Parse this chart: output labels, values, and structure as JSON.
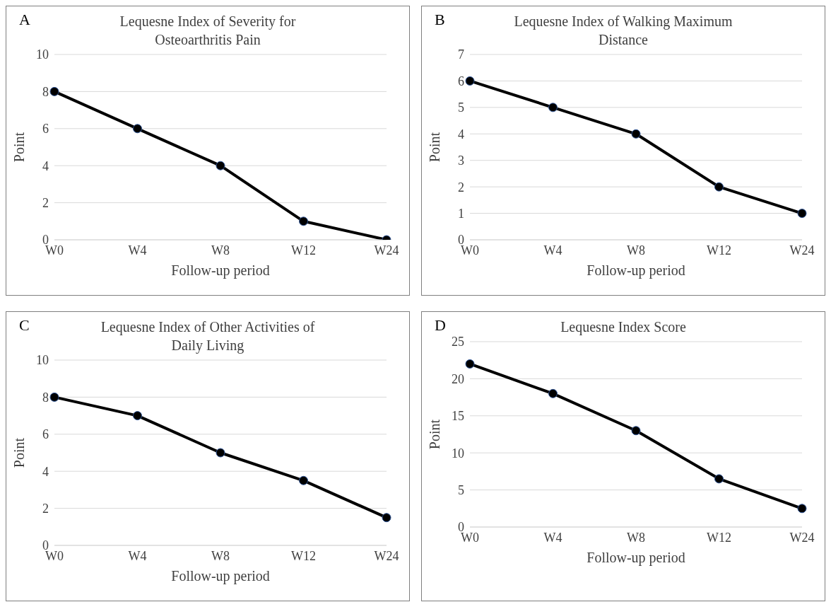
{
  "chart_data": [
    {
      "type": "line",
      "title": "Lequesne Index of Severity for Osteoarthritis Pain",
      "annotations": [
        "A"
      ],
      "xlabel": "Follow-up period",
      "ylabel": "Point",
      "categories": [
        "W0",
        "W4",
        "W8",
        "W12",
        "W24"
      ],
      "series": [
        {
          "color": "#000000",
          "values": [
            8,
            6,
            4,
            1,
            0
          ]
        }
      ],
      "ylim": [
        0,
        10
      ],
      "yticks": [
        0,
        2,
        4,
        6,
        8,
        10
      ],
      "grid": "y",
      "marker": "circle",
      "line_style": "solid"
    },
    {
      "type": "line",
      "title": "Lequesne Index of Walking Maximum Distance",
      "annotations": [
        "B"
      ],
      "xlabel": "Follow-up period",
      "ylabel": "Point",
      "categories": [
        "W0",
        "W4",
        "W8",
        "W12",
        "W24"
      ],
      "series": [
        {
          "color": "#000000",
          "values": [
            6,
            5,
            4,
            2,
            1
          ]
        }
      ],
      "ylim": [
        0,
        7
      ],
      "yticks": [
        0,
        1,
        2,
        3,
        4,
        5,
        6,
        7
      ],
      "grid": "y",
      "marker": "circle",
      "line_style": "solid"
    },
    {
      "type": "line",
      "title": "Lequesne Index of Other Activities of Daily Living",
      "annotations": [
        "C"
      ],
      "xlabel": "Follow-up period",
      "ylabel": "Point",
      "categories": [
        "W0",
        "W4",
        "W8",
        "W12",
        "W24"
      ],
      "series": [
        {
          "color": "#000000",
          "values": [
            8,
            7,
            5,
            3.5,
            1.5
          ]
        }
      ],
      "ylim": [
        0,
        10
      ],
      "yticks": [
        0,
        2,
        4,
        6,
        8,
        10
      ],
      "grid": "y",
      "marker": "circle",
      "line_style": "solid"
    },
    {
      "type": "line",
      "title": "Lequesne Index Score",
      "annotations": [
        "D"
      ],
      "xlabel": "Follow-up period",
      "ylabel": "Point",
      "categories": [
        "W0",
        "W4",
        "W8",
        "W12",
        "W24"
      ],
      "series": [
        {
          "color": "#000000",
          "values": [
            22,
            18,
            13,
            6.5,
            2.5
          ]
        }
      ],
      "ylim": [
        0,
        25
      ],
      "yticks": [
        0,
        5,
        10,
        15,
        20,
        25
      ],
      "grid": "y",
      "marker": "circle",
      "line_style": "solid"
    }
  ]
}
